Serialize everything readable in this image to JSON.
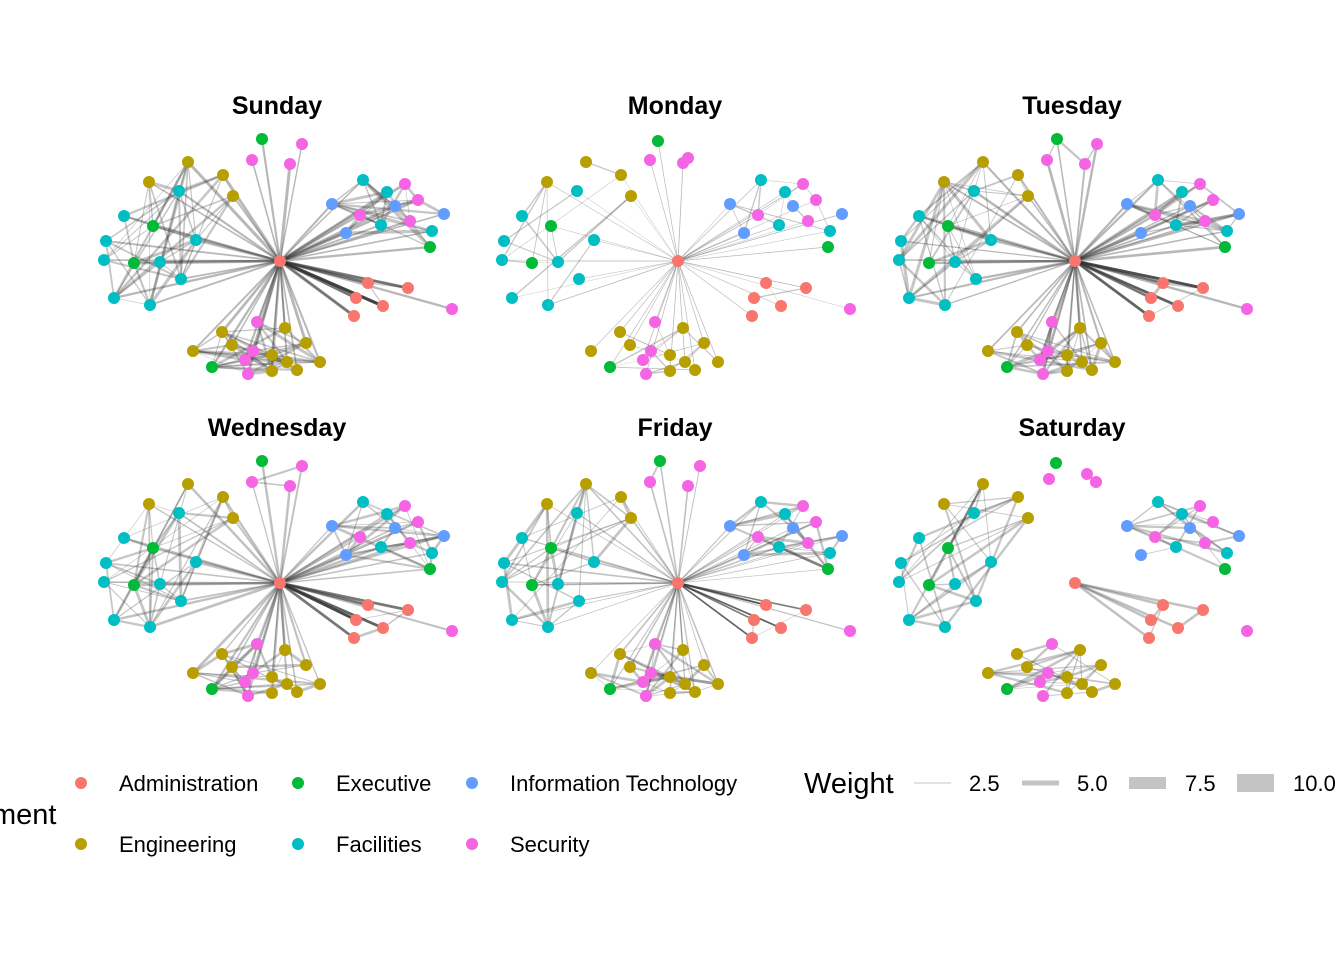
{
  "panels": [
    {
      "title": "Sunday"
    },
    {
      "title": "Monday"
    },
    {
      "title": "Tuesday"
    },
    {
      "title": "Wednesday"
    },
    {
      "title": "Friday"
    },
    {
      "title": "Saturday"
    }
  ],
  "legend": {
    "department_title_fragment": "ment",
    "departments": [
      {
        "label": "Administration",
        "color": "#F8766D"
      },
      {
        "label": "Executive",
        "color": "#00BA38"
      },
      {
        "label": "Information Technology",
        "color": "#619CFF"
      },
      {
        "label": "Engineering",
        "color": "#B79F00"
      },
      {
        "label": "Facilities",
        "color": "#00BFC4"
      },
      {
        "label": "Security",
        "color": "#F564E3"
      }
    ],
    "weight_title": "Weight",
    "weights": [
      "2.5",
      "5.0",
      "7.5",
      "10.0"
    ]
  }
}
